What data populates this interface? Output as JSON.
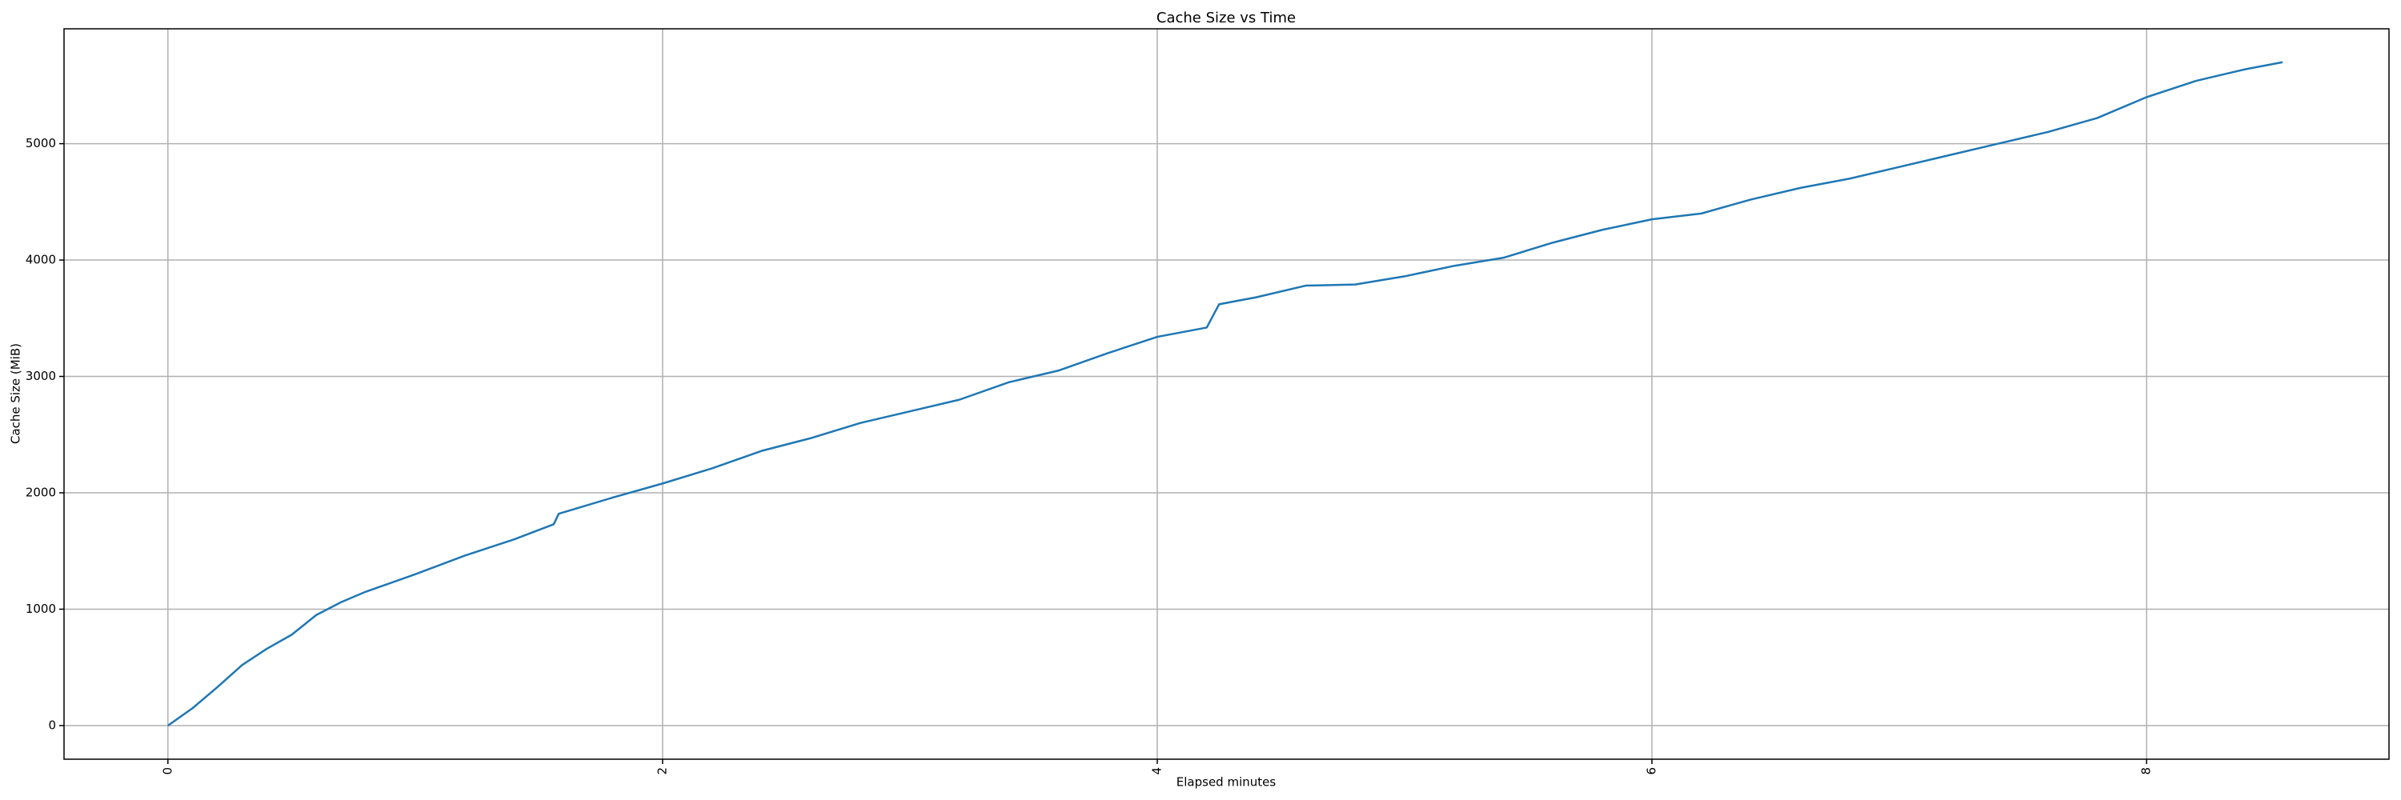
{
  "chart_data": {
    "type": "line",
    "title": "Cache Size vs Time",
    "xlabel": "Elapsed minutes",
    "ylabel": "Cache Size (MiB)",
    "x": [
      0,
      0.1,
      0.2,
      0.3,
      0.4,
      0.5,
      0.6,
      0.7,
      0.8,
      1.0,
      1.2,
      1.4,
      1.56,
      1.58,
      1.8,
      2.0,
      2.2,
      2.4,
      2.6,
      2.8,
      3.0,
      3.2,
      3.4,
      3.6,
      3.8,
      4.0,
      4.2,
      4.25,
      4.4,
      4.6,
      4.8,
      5.0,
      5.2,
      5.4,
      5.6,
      5.8,
      6.0,
      6.2,
      6.4,
      6.6,
      6.8,
      7.0,
      7.2,
      7.4,
      7.6,
      7.8,
      8.0,
      8.2,
      8.4,
      8.55
    ],
    "values": [
      0,
      150,
      330,
      520,
      660,
      780,
      950,
      1060,
      1150,
      1300,
      1460,
      1600,
      1730,
      1820,
      1960,
      2080,
      2210,
      2360,
      2470,
      2600,
      2700,
      2800,
      2950,
      3050,
      3200,
      3340,
      3420,
      3620,
      3680,
      3780,
      3790,
      3860,
      3950,
      4020,
      4150,
      4260,
      4350,
      4400,
      4520,
      4620,
      4700,
      4800,
      4900,
      5000,
      5100,
      5220,
      5400,
      5540,
      5640,
      5700
    ],
    "color": "#1f77b4",
    "xlim": [
      -0.42,
      8.98
    ],
    "ylim": [
      -289,
      5987
    ],
    "xticks": [
      0,
      2,
      4,
      6,
      8
    ],
    "yticks": [
      0,
      1000,
      2000,
      3000,
      4000,
      5000
    ],
    "grid": true
  }
}
